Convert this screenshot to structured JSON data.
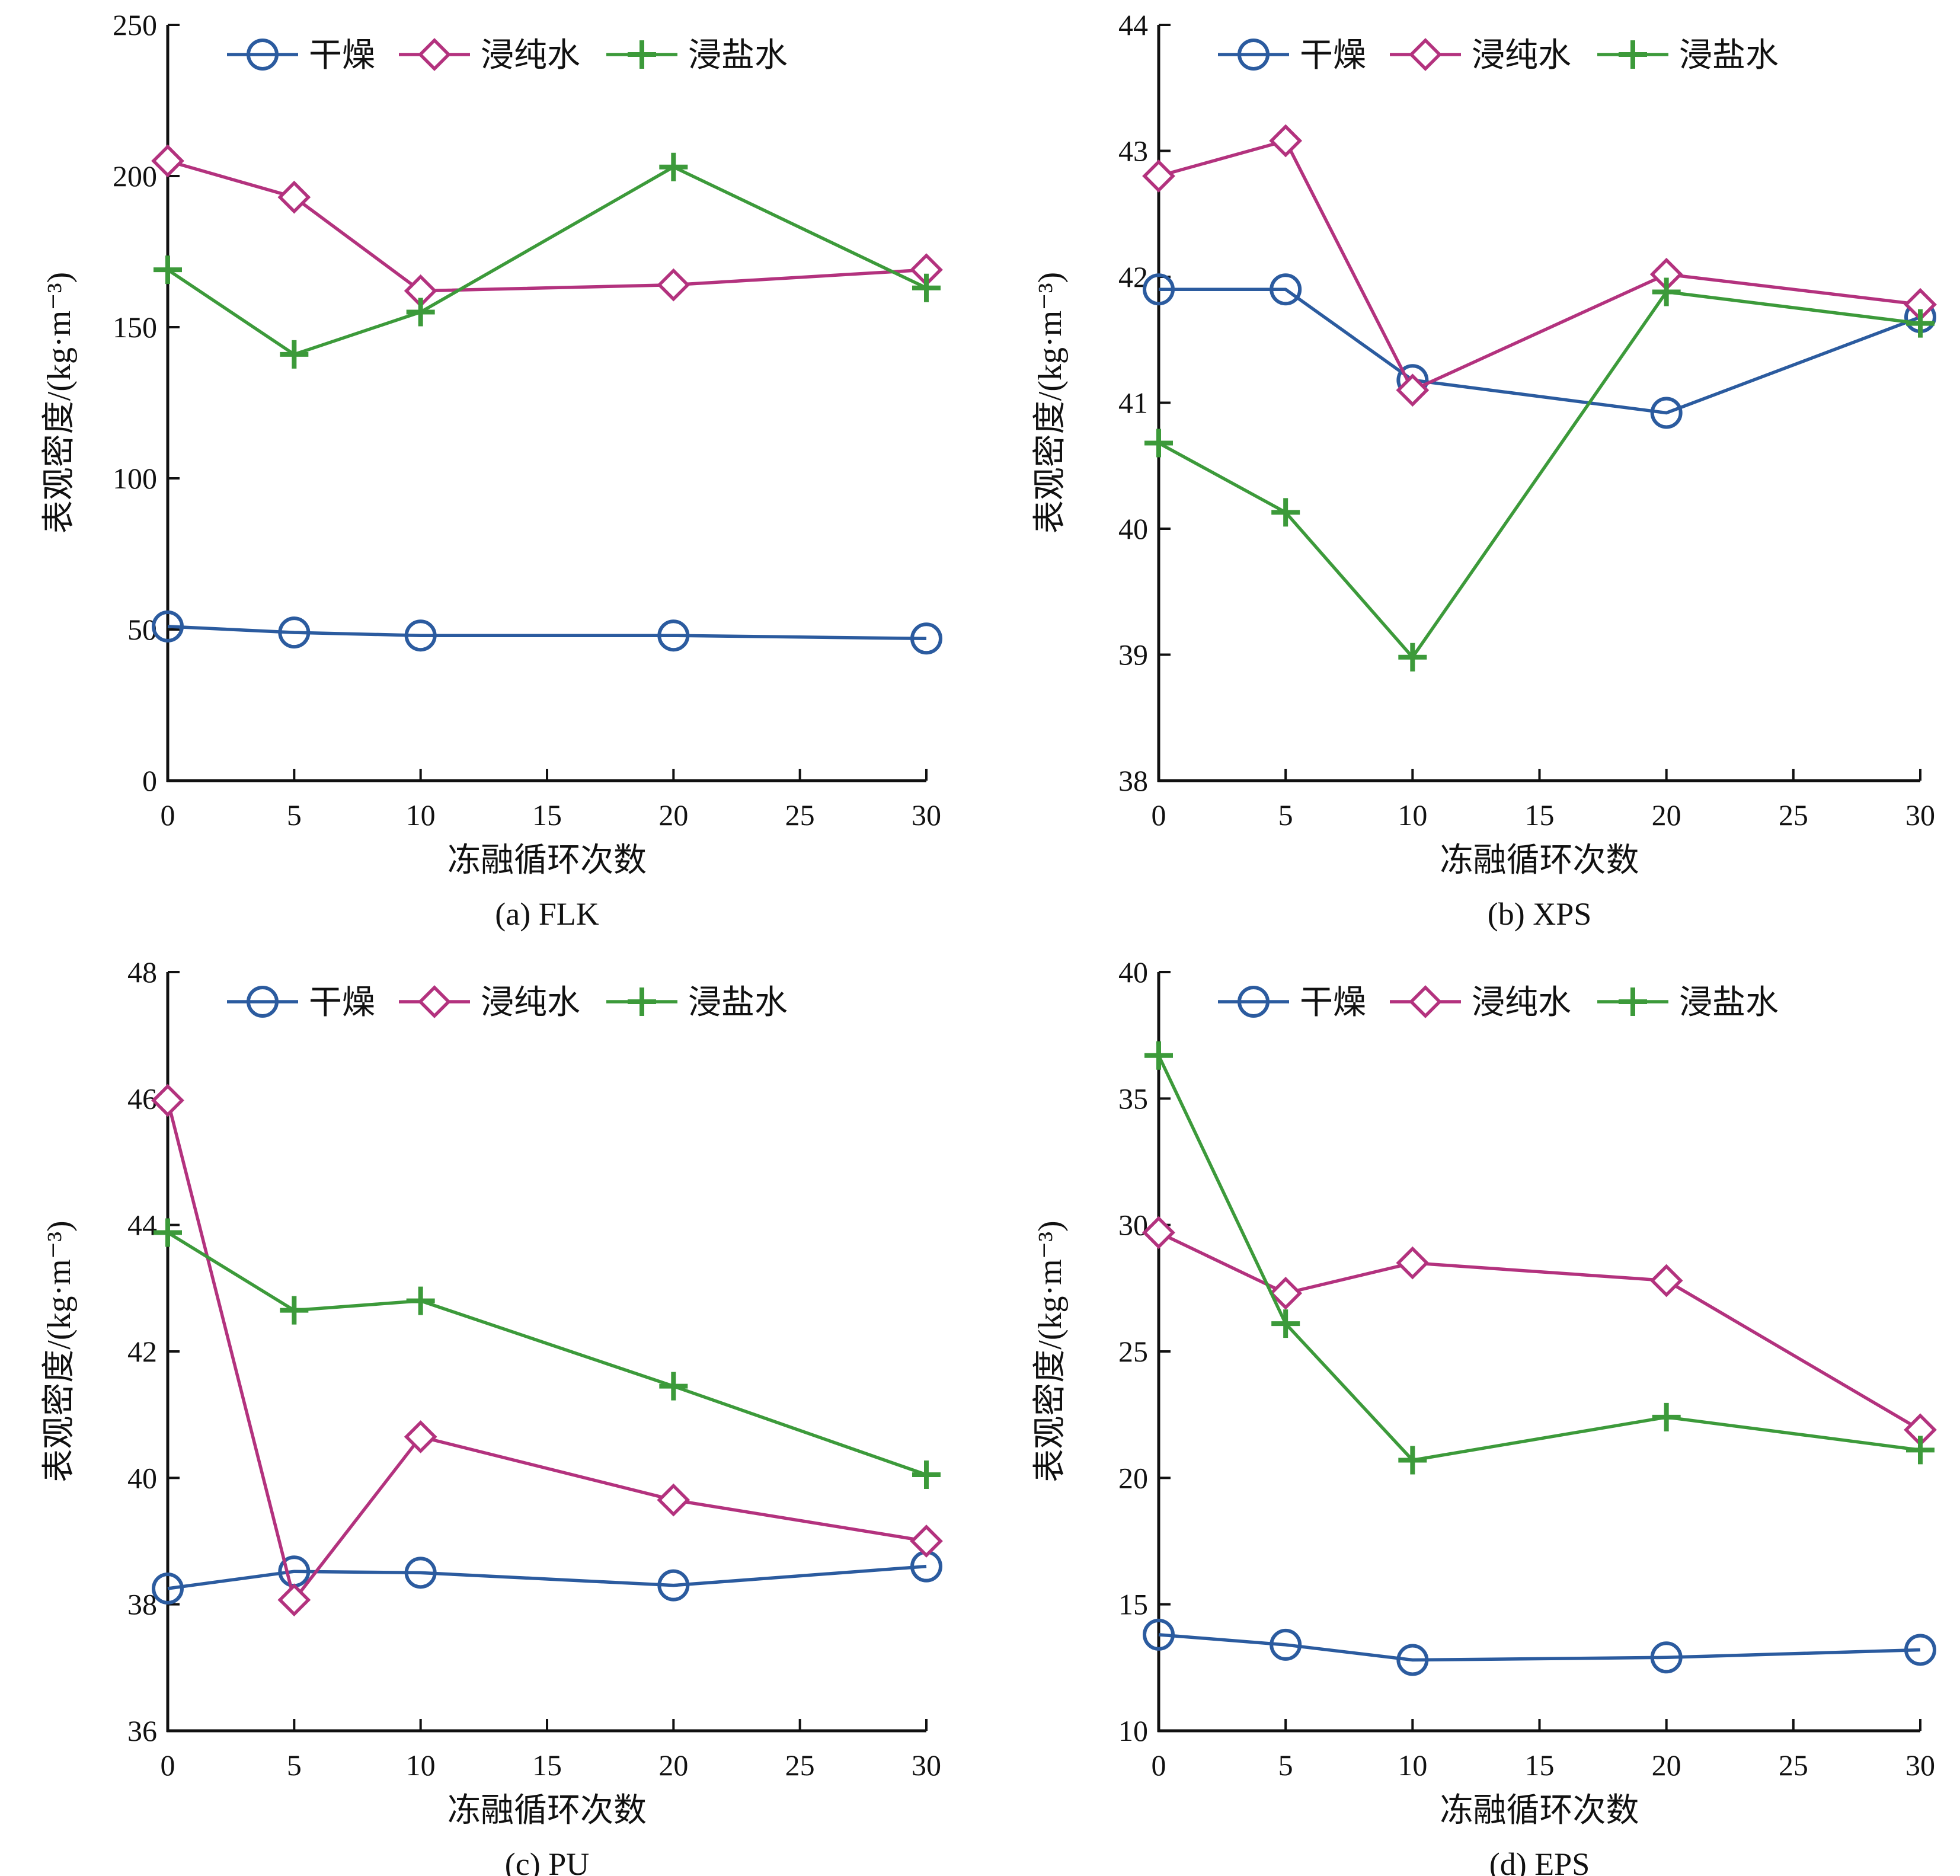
{
  "chart_data": [
    {
      "type": "line",
      "caption": "(a) FLK",
      "xlabel": "冻融循环次数",
      "ylabel": "表观密度/(kg·m⁻³)",
      "xlim": [
        0,
        30
      ],
      "ylim": [
        0,
        250
      ],
      "xticks": [
        0,
        5,
        10,
        15,
        20,
        25,
        30
      ],
      "yticks": [
        0,
        50,
        100,
        150,
        200,
        250
      ],
      "legend_position": "top",
      "x": [
        0,
        5,
        10,
        20,
        30
      ],
      "series": [
        {
          "name": "干燥",
          "values": [
            51,
            49,
            48,
            48,
            47
          ],
          "color": "#2b5b9f",
          "marker": "circle"
        },
        {
          "name": "浸纯水",
          "values": [
            205,
            193,
            162,
            164,
            169
          ],
          "color": "#b3327e",
          "marker": "diamond"
        },
        {
          "name": "浸盐水",
          "values": [
            169,
            141,
            155,
            203,
            163
          ],
          "color": "#3c9a3a",
          "marker": "plus"
        }
      ]
    },
    {
      "type": "line",
      "caption": "(b) XPS",
      "xlabel": "冻融循环次数",
      "ylabel": "表观密度/(kg·m⁻³)",
      "xlim": [
        0,
        30
      ],
      "ylim": [
        38,
        44
      ],
      "xticks": [
        0,
        5,
        10,
        15,
        20,
        25,
        30
      ],
      "yticks": [
        38,
        39,
        40,
        41,
        42,
        43,
        44
      ],
      "legend_position": "top",
      "x": [
        0,
        5,
        10,
        20,
        30
      ],
      "series": [
        {
          "name": "干燥",
          "values": [
            41.9,
            41.9,
            41.18,
            40.92,
            41.68
          ],
          "color": "#2b5b9f",
          "marker": "circle"
        },
        {
          "name": "浸纯水",
          "values": [
            42.8,
            43.08,
            41.1,
            42.02,
            41.78
          ],
          "color": "#b3327e",
          "marker": "diamond"
        },
        {
          "name": "浸盐水",
          "values": [
            40.68,
            40.13,
            38.98,
            41.88,
            41.63
          ],
          "color": "#3c9a3a",
          "marker": "plus"
        }
      ]
    },
    {
      "type": "line",
      "caption": "(c) PU",
      "xlabel": "冻融循环次数",
      "ylabel": "表观密度/(kg·m⁻³)",
      "xlim": [
        0,
        30
      ],
      "ylim": [
        36,
        48
      ],
      "xticks": [
        0,
        5,
        10,
        15,
        20,
        25,
        30
      ],
      "yticks": [
        36,
        38,
        40,
        42,
        44,
        46,
        48
      ],
      "legend_position": "top",
      "x": [
        0,
        5,
        10,
        20,
        30
      ],
      "series": [
        {
          "name": "干燥",
          "values": [
            38.25,
            38.52,
            38.5,
            38.3,
            38.6
          ],
          "color": "#2b5b9f",
          "marker": "circle"
        },
        {
          "name": "浸纯水",
          "values": [
            45.97,
            38.07,
            40.65,
            39.65,
            39.0
          ],
          "color": "#b3327e",
          "marker": "diamond"
        },
        {
          "name": "浸盐水",
          "values": [
            43.88,
            42.65,
            42.8,
            41.45,
            40.05
          ],
          "color": "#3c9a3a",
          "marker": "plus"
        }
      ]
    },
    {
      "type": "line",
      "caption": "(d) EPS",
      "xlabel": "冻融循环次数",
      "ylabel": "表观密度/(kg·m⁻³)",
      "xlim": [
        0,
        30
      ],
      "ylim": [
        10,
        40
      ],
      "xticks": [
        0,
        5,
        10,
        15,
        20,
        25,
        30
      ],
      "yticks": [
        10,
        15,
        20,
        25,
        30,
        35,
        40
      ],
      "legend_position": "top",
      "x": [
        0,
        5,
        10,
        20,
        30
      ],
      "series": [
        {
          "name": "干燥",
          "values": [
            13.8,
            13.4,
            12.8,
            12.9,
            13.2
          ],
          "color": "#2b5b9f",
          "marker": "circle"
        },
        {
          "name": "浸纯水",
          "values": [
            29.7,
            27.3,
            28.5,
            27.8,
            21.9
          ],
          "color": "#b3327e",
          "marker": "diamond"
        },
        {
          "name": "浸盐水",
          "values": [
            36.7,
            26.1,
            20.7,
            22.4,
            21.1
          ],
          "color": "#3c9a3a",
          "marker": "plus"
        }
      ]
    }
  ]
}
